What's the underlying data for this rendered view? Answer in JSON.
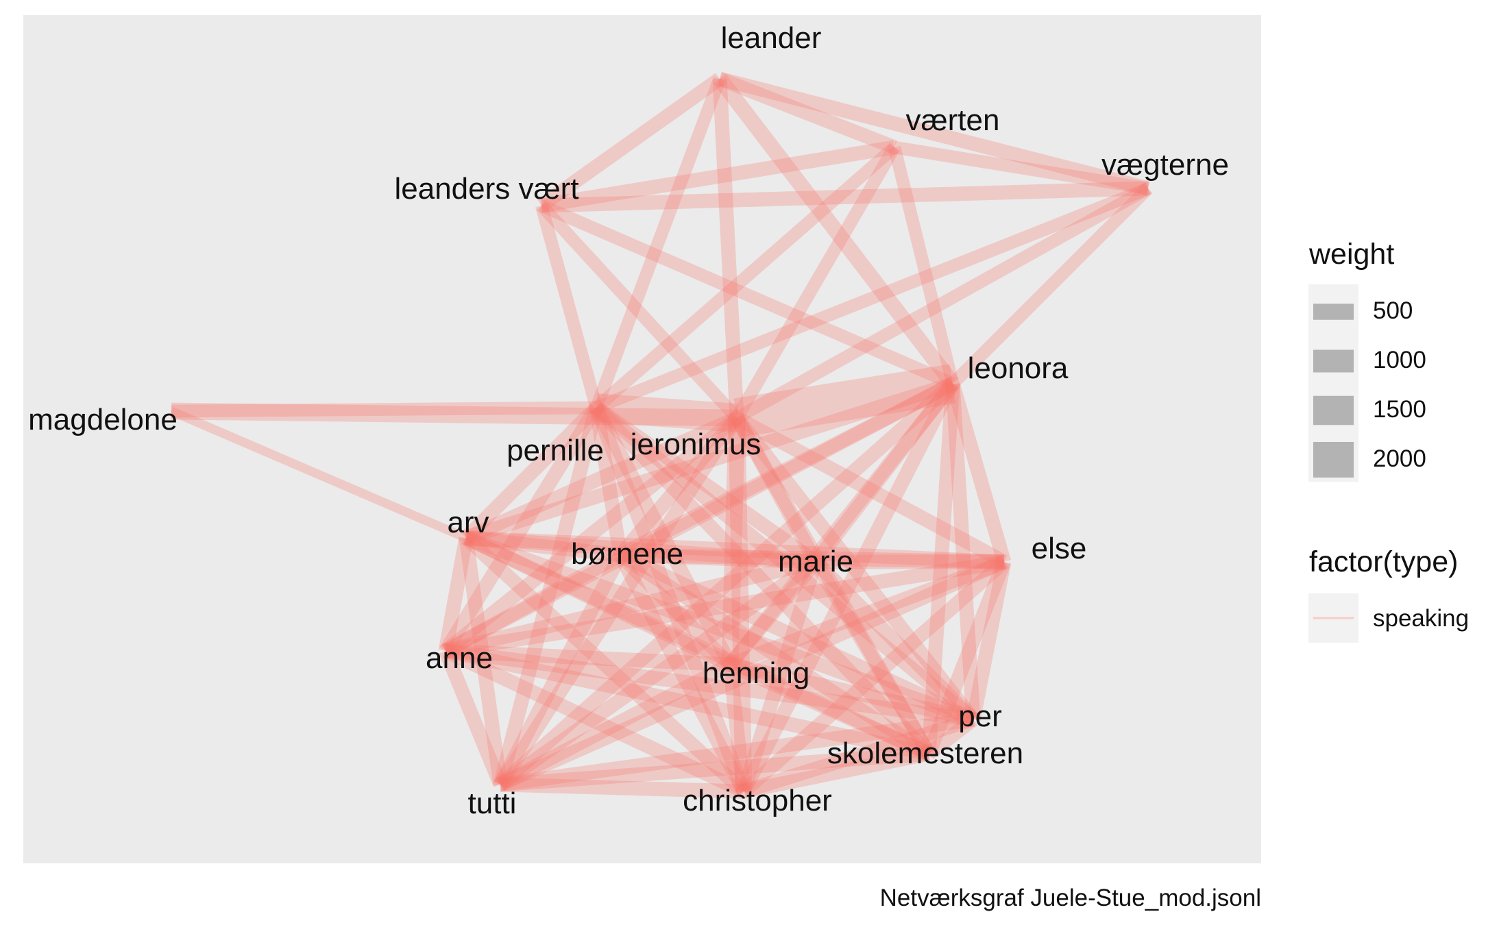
{
  "caption": "Netværksgraf Juele-Stue_mod.jsonl",
  "colors": {
    "panel": "#ebebeb",
    "edge": "#f8766d",
    "legend_key": "#b3b3b3",
    "legend_bg": "#f2f2f2"
  },
  "legend": {
    "weight": {
      "title": "weight",
      "items": [
        {
          "label": "500",
          "value": 500
        },
        {
          "label": "1000",
          "value": 1000
        },
        {
          "label": "1500",
          "value": 1500
        },
        {
          "label": "2000",
          "value": 2000
        }
      ]
    },
    "type": {
      "title": "factor(type)",
      "items": [
        {
          "label": "speaking"
        }
      ]
    }
  },
  "nodes": [
    {
      "id": "leander",
      "label": "leander"
    },
    {
      "id": "vaerten",
      "label": "værten"
    },
    {
      "id": "vaegterne",
      "label": "vægterne"
    },
    {
      "id": "leanders_vaert",
      "label": "leanders vært"
    },
    {
      "id": "leonora",
      "label": "leonora"
    },
    {
      "id": "magdelone",
      "label": "magdelone"
    },
    {
      "id": "pernille",
      "label": "pernille"
    },
    {
      "id": "jeronimus",
      "label": "jeronimus"
    },
    {
      "id": "arv",
      "label": "arv"
    },
    {
      "id": "bornene",
      "label": "børnene"
    },
    {
      "id": "marie",
      "label": "marie"
    },
    {
      "id": "else",
      "label": "else"
    },
    {
      "id": "anne",
      "label": "anne"
    },
    {
      "id": "henning",
      "label": "henning"
    },
    {
      "id": "per",
      "label": "per"
    },
    {
      "id": "skolemesteren",
      "label": "skolemesteren"
    },
    {
      "id": "tutti",
      "label": "tutti"
    },
    {
      "id": "christopher",
      "label": "christopher"
    }
  ],
  "edges": [
    {
      "source": "leander",
      "target": "leanders_vaert",
      "weight": 200,
      "type": "speaking"
    },
    {
      "source": "leander",
      "target": "vaerten",
      "weight": 200,
      "type": "speaking"
    },
    {
      "source": "leander",
      "target": "vaegterne",
      "weight": 200,
      "type": "speaking"
    },
    {
      "source": "leander",
      "target": "leonora",
      "weight": 250,
      "type": "speaking"
    },
    {
      "source": "leander",
      "target": "jeronimus",
      "weight": 200,
      "type": "speaking"
    },
    {
      "source": "leander",
      "target": "pernille",
      "weight": 150,
      "type": "speaking"
    },
    {
      "source": "leanders_vaert",
      "target": "vaerten",
      "weight": 200,
      "type": "speaking"
    },
    {
      "source": "leanders_vaert",
      "target": "vaegterne",
      "weight": 200,
      "type": "speaking"
    },
    {
      "source": "leanders_vaert",
      "target": "pernille",
      "weight": 150,
      "type": "speaking"
    },
    {
      "source": "leanders_vaert",
      "target": "jeronimus",
      "weight": 150,
      "type": "speaking"
    },
    {
      "source": "leanders_vaert",
      "target": "leonora",
      "weight": 150,
      "type": "speaking"
    },
    {
      "source": "vaerten",
      "target": "vaegterne",
      "weight": 150,
      "type": "speaking"
    },
    {
      "source": "vaerten",
      "target": "pernille",
      "weight": 150,
      "type": "speaking"
    },
    {
      "source": "vaerten",
      "target": "jeronimus",
      "weight": 150,
      "type": "speaking"
    },
    {
      "source": "vaerten",
      "target": "leonora",
      "weight": 150,
      "type": "speaking"
    },
    {
      "source": "vaegterne",
      "target": "jeronimus",
      "weight": 150,
      "type": "speaking"
    },
    {
      "source": "vaegterne",
      "target": "pernille",
      "weight": 150,
      "type": "speaking"
    },
    {
      "source": "vaegterne",
      "target": "leonora",
      "weight": 150,
      "type": "speaking"
    },
    {
      "source": "magdelone",
      "target": "jeronimus",
      "weight": 300,
      "type": "speaking"
    },
    {
      "source": "magdelone",
      "target": "pernille",
      "weight": 150,
      "type": "speaking"
    },
    {
      "source": "magdelone",
      "target": "arv",
      "weight": 60,
      "type": "speaking"
    },
    {
      "source": "jeronimus",
      "target": "leonora",
      "weight": 2000,
      "type": "speaking"
    },
    {
      "source": "jeronimus",
      "target": "pernille",
      "weight": 1000,
      "type": "speaking"
    },
    {
      "source": "jeronimus",
      "target": "henning",
      "weight": 300,
      "type": "speaking"
    },
    {
      "source": "jeronimus",
      "target": "christopher",
      "weight": 300,
      "type": "speaking"
    },
    {
      "source": "jeronimus",
      "target": "marie",
      "weight": 200,
      "type": "speaking"
    },
    {
      "source": "jeronimus",
      "target": "arv",
      "weight": 200,
      "type": "speaking"
    },
    {
      "source": "jeronimus",
      "target": "anne",
      "weight": 200,
      "type": "speaking"
    },
    {
      "source": "jeronimus",
      "target": "bornene",
      "weight": 200,
      "type": "speaking"
    },
    {
      "source": "jeronimus",
      "target": "per",
      "weight": 200,
      "type": "speaking"
    },
    {
      "source": "jeronimus",
      "target": "skolemesteren",
      "weight": 200,
      "type": "speaking"
    },
    {
      "source": "jeronimus",
      "target": "tutti",
      "weight": 200,
      "type": "speaking"
    },
    {
      "source": "jeronimus",
      "target": "else",
      "weight": 200,
      "type": "speaking"
    },
    {
      "source": "pernille",
      "target": "arv",
      "weight": 200,
      "type": "speaking"
    },
    {
      "source": "pernille",
      "target": "anne",
      "weight": 200,
      "type": "speaking"
    },
    {
      "source": "pernille",
      "target": "henning",
      "weight": 200,
      "type": "speaking"
    },
    {
      "source": "pernille",
      "target": "christopher",
      "weight": 200,
      "type": "speaking"
    },
    {
      "source": "pernille",
      "target": "tutti",
      "weight": 200,
      "type": "speaking"
    },
    {
      "source": "pernille",
      "target": "marie",
      "weight": 200,
      "type": "speaking"
    },
    {
      "source": "pernille",
      "target": "per",
      "weight": 200,
      "type": "speaking"
    },
    {
      "source": "pernille",
      "target": "skolemesteren",
      "weight": 200,
      "type": "speaking"
    },
    {
      "source": "pernille",
      "target": "bornene",
      "weight": 200,
      "type": "speaking"
    },
    {
      "source": "leonora",
      "target": "arv",
      "weight": 200,
      "type": "speaking"
    },
    {
      "source": "leonora",
      "target": "bornene",
      "weight": 200,
      "type": "speaking"
    },
    {
      "source": "leonora",
      "target": "marie",
      "weight": 200,
      "type": "speaking"
    },
    {
      "source": "leonora",
      "target": "anne",
      "weight": 200,
      "type": "speaking"
    },
    {
      "source": "leonora",
      "target": "henning",
      "weight": 200,
      "type": "speaking"
    },
    {
      "source": "leonora",
      "target": "per",
      "weight": 200,
      "type": "speaking"
    },
    {
      "source": "leonora",
      "target": "skolemesteren",
      "weight": 200,
      "type": "speaking"
    },
    {
      "source": "leonora",
      "target": "christopher",
      "weight": 200,
      "type": "speaking"
    },
    {
      "source": "leonora",
      "target": "tutti",
      "weight": 200,
      "type": "speaking"
    },
    {
      "source": "leonora",
      "target": "else",
      "weight": 200,
      "type": "speaking"
    },
    {
      "source": "arv",
      "target": "bornene",
      "weight": 200,
      "type": "speaking"
    },
    {
      "source": "arv",
      "target": "marie",
      "weight": 200,
      "type": "speaking"
    },
    {
      "source": "arv",
      "target": "anne",
      "weight": 200,
      "type": "speaking"
    },
    {
      "source": "arv",
      "target": "henning",
      "weight": 200,
      "type": "speaking"
    },
    {
      "source": "arv",
      "target": "per",
      "weight": 200,
      "type": "speaking"
    },
    {
      "source": "arv",
      "target": "skolemesteren",
      "weight": 200,
      "type": "speaking"
    },
    {
      "source": "arv",
      "target": "tutti",
      "weight": 200,
      "type": "speaking"
    },
    {
      "source": "arv",
      "target": "christopher",
      "weight": 200,
      "type": "speaking"
    },
    {
      "source": "arv",
      "target": "else",
      "weight": 200,
      "type": "speaking"
    },
    {
      "source": "bornene",
      "target": "marie",
      "weight": 200,
      "type": "speaking"
    },
    {
      "source": "bornene",
      "target": "anne",
      "weight": 200,
      "type": "speaking"
    },
    {
      "source": "bornene",
      "target": "henning",
      "weight": 200,
      "type": "speaking"
    },
    {
      "source": "bornene",
      "target": "per",
      "weight": 200,
      "type": "speaking"
    },
    {
      "source": "bornene",
      "target": "skolemesteren",
      "weight": 200,
      "type": "speaking"
    },
    {
      "source": "bornene",
      "target": "tutti",
      "weight": 200,
      "type": "speaking"
    },
    {
      "source": "bornene",
      "target": "christopher",
      "weight": 200,
      "type": "speaking"
    },
    {
      "source": "bornene",
      "target": "else",
      "weight": 200,
      "type": "speaking"
    },
    {
      "source": "marie",
      "target": "anne",
      "weight": 200,
      "type": "speaking"
    },
    {
      "source": "marie",
      "target": "henning",
      "weight": 200,
      "type": "speaking"
    },
    {
      "source": "marie",
      "target": "per",
      "weight": 200,
      "type": "speaking"
    },
    {
      "source": "marie",
      "target": "skolemesteren",
      "weight": 200,
      "type": "speaking"
    },
    {
      "source": "marie",
      "target": "tutti",
      "weight": 200,
      "type": "speaking"
    },
    {
      "source": "marie",
      "target": "christopher",
      "weight": 200,
      "type": "speaking"
    },
    {
      "source": "marie",
      "target": "else",
      "weight": 200,
      "type": "speaking"
    },
    {
      "source": "anne",
      "target": "henning",
      "weight": 200,
      "type": "speaking"
    },
    {
      "source": "anne",
      "target": "per",
      "weight": 200,
      "type": "speaking"
    },
    {
      "source": "anne",
      "target": "skolemesteren",
      "weight": 200,
      "type": "speaking"
    },
    {
      "source": "anne",
      "target": "tutti",
      "weight": 200,
      "type": "speaking"
    },
    {
      "source": "anne",
      "target": "christopher",
      "weight": 200,
      "type": "speaking"
    },
    {
      "source": "anne",
      "target": "else",
      "weight": 200,
      "type": "speaking"
    },
    {
      "source": "henning",
      "target": "per",
      "weight": 200,
      "type": "speaking"
    },
    {
      "source": "henning",
      "target": "skolemesteren",
      "weight": 200,
      "type": "speaking"
    },
    {
      "source": "henning",
      "target": "tutti",
      "weight": 200,
      "type": "speaking"
    },
    {
      "source": "henning",
      "target": "christopher",
      "weight": 200,
      "type": "speaking"
    },
    {
      "source": "henning",
      "target": "else",
      "weight": 200,
      "type": "speaking"
    },
    {
      "source": "per",
      "target": "skolemesteren",
      "weight": 200,
      "type": "speaking"
    },
    {
      "source": "per",
      "target": "tutti",
      "weight": 200,
      "type": "speaking"
    },
    {
      "source": "per",
      "target": "christopher",
      "weight": 200,
      "type": "speaking"
    },
    {
      "source": "per",
      "target": "else",
      "weight": 200,
      "type": "speaking"
    },
    {
      "source": "skolemesteren",
      "target": "tutti",
      "weight": 200,
      "type": "speaking"
    },
    {
      "source": "skolemesteren",
      "target": "christopher",
      "weight": 200,
      "type": "speaking"
    },
    {
      "source": "skolemesteren",
      "target": "else",
      "weight": 200,
      "type": "speaking"
    },
    {
      "source": "tutti",
      "target": "christopher",
      "weight": 200,
      "type": "speaking"
    },
    {
      "source": "tutti",
      "target": "else",
      "weight": 200,
      "type": "speaking"
    },
    {
      "source": "christopher",
      "target": "else",
      "weight": 200,
      "type": "speaking"
    }
  ]
}
